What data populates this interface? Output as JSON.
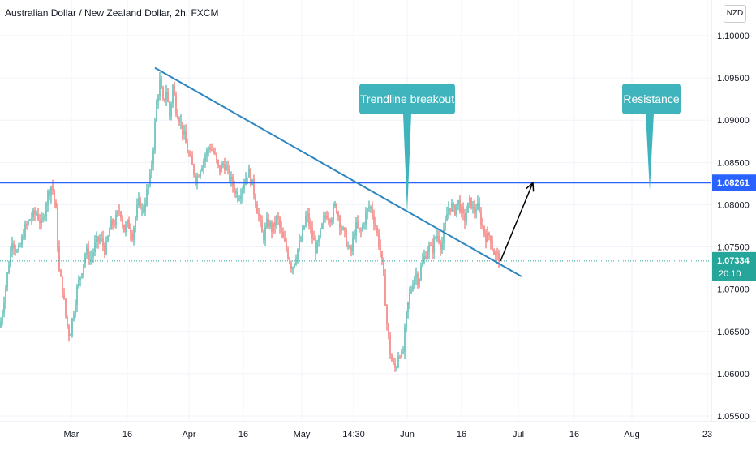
{
  "header": {
    "title": "Australian Dollar / New Zealand Dollar, 2h, FXCM",
    "currency": "NZD"
  },
  "colors": {
    "up": "#26a69a",
    "down": "#ef5350",
    "resistance_line": "#2962ff",
    "trendline": "#2e86c1",
    "callout_bg": "#3fb4bd",
    "arrow": "#000000",
    "last_price_bg": "#26a69a",
    "grid": "#f0f3fa"
  },
  "chart_data": {
    "type": "candlestick",
    "title": "Australian Dollar / New Zealand Dollar, 2h, FXCM",
    "xlabel": "",
    "ylabel": "",
    "ylim": [
      1.0547,
      1.1038
    ],
    "grid": true,
    "y_ticks": [
      "1.10000",
      "1.09500",
      "1.09000",
      "1.08500",
      "1.08000",
      "1.07500",
      "1.07000",
      "1.06500",
      "1.06000",
      "1.05500"
    ],
    "x_ticks": [
      "Mar",
      "16",
      "Apr",
      "16",
      "May",
      "14:30",
      "Jun",
      "16",
      "Jul",
      "16",
      "Aug",
      "23"
    ],
    "series": [
      {
        "type": "price",
        "points": [
          [
            0,
            1.0655
          ],
          [
            8,
            1.071
          ],
          [
            15,
            1.076
          ],
          [
            22,
            1.074
          ],
          [
            30,
            1.077
          ],
          [
            38,
            1.0785
          ],
          [
            45,
            1.079
          ],
          [
            52,
            1.0775
          ],
          [
            58,
            1.081
          ],
          [
            64,
            1.0825
          ],
          [
            69,
            1.079
          ],
          [
            73,
            1.072
          ],
          [
            77,
            1.07
          ],
          [
            82,
            1.066
          ],
          [
            86,
            1.0645
          ],
          [
            90,
            1.067
          ],
          [
            95,
            1.07
          ],
          [
            100,
            1.072
          ],
          [
            106,
            1.0745
          ],
          [
            112,
            1.0735
          ],
          [
            118,
            1.0755
          ],
          [
            124,
            1.076
          ],
          [
            130,
            1.0745
          ],
          [
            136,
            1.0775
          ],
          [
            142,
            1.078
          ],
          [
            148,
            1.0795
          ],
          [
            153,
            1.077
          ],
          [
            158,
            1.0778
          ],
          [
            163,
            1.0765
          ],
          [
            168,
            1.079
          ],
          [
            172,
            1.0805
          ],
          [
            176,
            1.079
          ],
          [
            180,
            1.081
          ],
          [
            185,
            1.083
          ],
          [
            189,
            1.087
          ],
          [
            193,
            1.092
          ],
          [
            197,
            1.0945
          ],
          [
            201,
            1.092
          ],
          [
            205,
            1.0935
          ],
          [
            209,
            1.0905
          ],
          [
            213,
            1.094
          ],
          [
            217,
            1.0915
          ],
          [
            222,
            1.09
          ],
          [
            227,
            1.088
          ],
          [
            232,
            1.086
          ],
          [
            237,
            1.0845
          ],
          [
            242,
            1.083
          ],
          [
            247,
            1.0845
          ],
          [
            252,
            1.0855
          ],
          [
            258,
            1.087
          ],
          [
            264,
            1.086
          ],
          [
            270,
            1.084
          ],
          [
            276,
            1.085
          ],
          [
            282,
            1.0835
          ],
          [
            288,
            1.082
          ],
          [
            294,
            1.081
          ],
          [
            300,
            1.0825
          ],
          [
            306,
            1.084
          ],
          [
            312,
            1.082
          ],
          [
            318,
            1.079
          ],
          [
            324,
            1.076
          ],
          [
            330,
            1.078
          ],
          [
            336,
            1.077
          ],
          [
            342,
            1.0785
          ],
          [
            348,
            1.076
          ],
          [
            354,
            1.0745
          ],
          [
            360,
            1.0725
          ],
          [
            366,
            1.0745
          ],
          [
            372,
            1.076
          ],
          [
            378,
            1.079
          ],
          [
            384,
            1.0765
          ],
          [
            390,
            1.0745
          ],
          [
            396,
            1.077
          ],
          [
            402,
            1.079
          ],
          [
            408,
            1.0785
          ],
          [
            414,
            1.08
          ],
          [
            420,
            1.0775
          ],
          [
            426,
            1.076
          ],
          [
            432,
            1.074
          ],
          [
            438,
            1.0775
          ],
          [
            444,
            1.0765
          ],
          [
            450,
            1.0785
          ],
          [
            456,
            1.08
          ],
          [
            462,
            1.078
          ],
          [
            466,
            1.076
          ],
          [
            470,
            1.074
          ],
          [
            474,
            1.07
          ],
          [
            477,
            1.066
          ],
          [
            480,
            1.063
          ],
          [
            484,
            1.061
          ],
          [
            488,
            1.0605
          ],
          [
            492,
            1.063
          ],
          [
            496,
            1.0615
          ],
          [
            500,
            1.066
          ],
          [
            504,
            1.069
          ],
          [
            508,
            1.0705
          ],
          [
            512,
            1.072
          ],
          [
            516,
            1.071
          ],
          [
            520,
            1.073
          ],
          [
            524,
            1.074
          ],
          [
            528,
            1.075
          ],
          [
            532,
            1.0745
          ],
          [
            536,
            1.076
          ],
          [
            540,
            1.0765
          ],
          [
            544,
            1.075
          ],
          [
            548,
            1.077
          ],
          [
            552,
            1.0795
          ],
          [
            556,
            1.08
          ],
          [
            560,
            1.079
          ],
          [
            564,
            1.0805
          ],
          [
            568,
            1.0795
          ],
          [
            572,
            1.078
          ],
          [
            576,
            1.0795
          ],
          [
            580,
            1.0805
          ],
          [
            584,
            1.079
          ],
          [
            588,
            1.08
          ],
          [
            592,
            1.0785
          ],
          [
            596,
            1.077
          ],
          [
            600,
            1.076
          ],
          [
            604,
            1.0765
          ],
          [
            608,
            1.0745
          ],
          [
            612,
            1.074
          ],
          [
            616,
            1.07334
          ]
        ]
      }
    ],
    "annotations": {
      "resistance": {
        "label": "Resistance",
        "price": 1.08261,
        "price_label": "1.08261"
      },
      "trendline": {
        "from": [
          191,
          1.0962
        ],
        "to": [
          643,
          1.0715
        ]
      },
      "trendline_breakout": {
        "label": "Trendline breakout"
      },
      "projection_arrow": {
        "from": [
          617,
          1.07334
        ],
        "to": [
          657,
          1.0826
        ]
      },
      "last_price": {
        "price": 1.07334,
        "price_label": "1.07334",
        "countdown": "20:10"
      }
    }
  }
}
